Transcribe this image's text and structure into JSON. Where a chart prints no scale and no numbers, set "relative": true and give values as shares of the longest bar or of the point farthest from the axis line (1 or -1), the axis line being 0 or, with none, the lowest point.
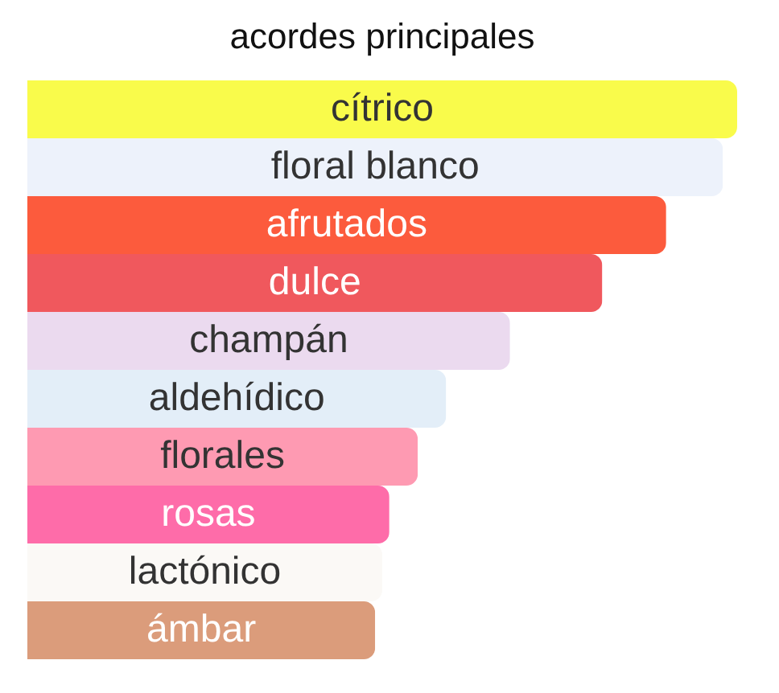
{
  "chart_data": {
    "type": "bar",
    "orientation": "horizontal",
    "relative": true,
    "title": "acordes principales",
    "categories": [
      "cítrico",
      "floral blanco",
      "afrutados",
      "dulce",
      "champán",
      "aldehídico",
      "florales",
      "rosas",
      "lactónico",
      "ámbar"
    ],
    "values": [
      1,
      0.98,
      0.9,
      0.81,
      0.68,
      0.59,
      0.55,
      0.51,
      0.5,
      0.49
    ],
    "colors": [
      "#f9fb4b",
      "#edf2fb",
      "#fc5b3d",
      "#f0585d",
      "#ebdaef",
      "#e3eef8",
      "#fe9ab2",
      "#fe6ca9",
      "#fbf9f6",
      "#db9c7b"
    ]
  }
}
